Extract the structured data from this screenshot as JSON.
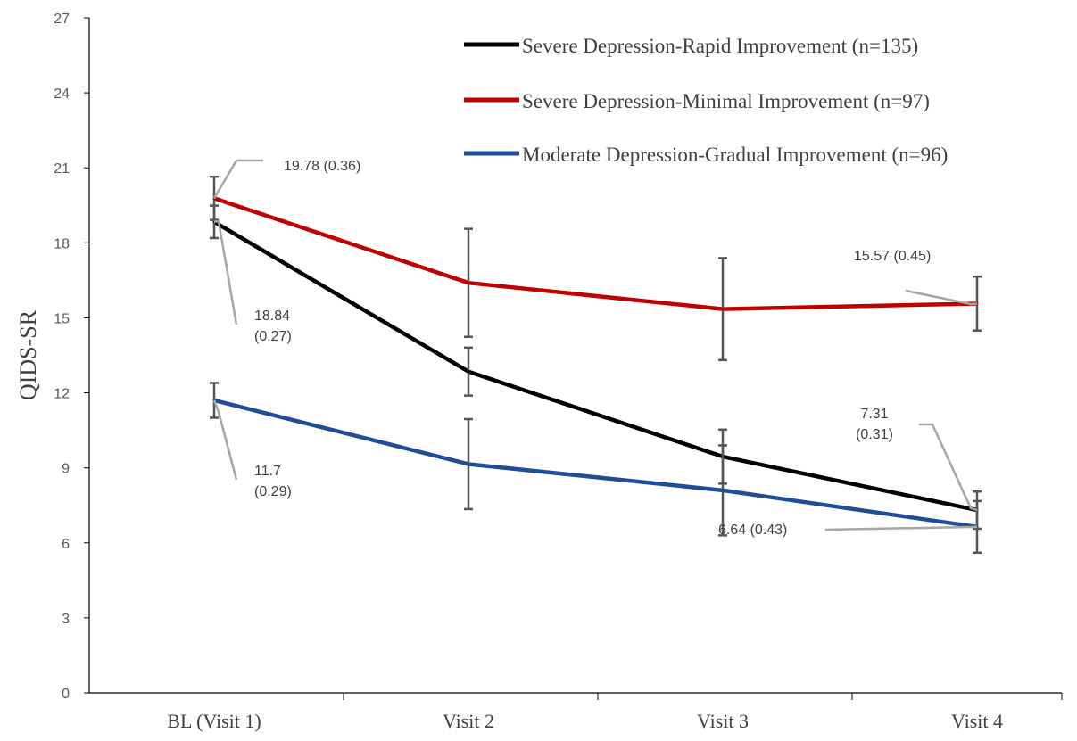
{
  "chart_data": {
    "type": "line",
    "title": "",
    "xlabel": "",
    "ylabel": "QIDS-SR",
    "categories": [
      "BL (Visit 1)",
      "Visit 2",
      "Visit 3",
      "Visit 4"
    ],
    "ylim": [
      0,
      27
    ],
    "yticks": [
      0,
      3,
      6,
      9,
      12,
      15,
      18,
      21,
      24,
      27
    ],
    "grid": false,
    "legend_position": "top-right",
    "series": [
      {
        "name": "Severe Depression-Rapid Improvement (n=135)",
        "color": "#000000",
        "values": [
          18.84,
          12.85,
          9.45,
          7.31
        ],
        "errors": [
          0.27,
          0.4,
          0.45,
          0.31
        ]
      },
      {
        "name": "Severe Depression-Minimal Improvement (n=97)",
        "color": "#C00000",
        "values": [
          19.78,
          16.4,
          15.35,
          15.57
        ],
        "errors": [
          0.36,
          0.9,
          0.85,
          0.45
        ]
      },
      {
        "name": "Moderate Depression-Gradual Improvement (n=96)",
        "color": "#1F4E97",
        "values": [
          11.7,
          9.15,
          8.1,
          6.64
        ],
        "errors": [
          0.29,
          0.75,
          0.75,
          0.43
        ]
      }
    ],
    "annotations": [
      {
        "series": 1,
        "point": 0,
        "lines": [
          "19.78 (0.36)"
        ]
      },
      {
        "series": 0,
        "point": 0,
        "lines": [
          "18.84",
          "(0.27)"
        ]
      },
      {
        "series": 2,
        "point": 0,
        "lines": [
          "11.7",
          "(0.29)"
        ]
      },
      {
        "series": 1,
        "point": 3,
        "lines": [
          "15.57 (0.45)"
        ]
      },
      {
        "series": 0,
        "point": 3,
        "lines": [
          "7.31",
          "(0.31)"
        ]
      },
      {
        "series": 2,
        "point": 3,
        "lines": [
          "6.64 (0.43)"
        ]
      }
    ]
  }
}
